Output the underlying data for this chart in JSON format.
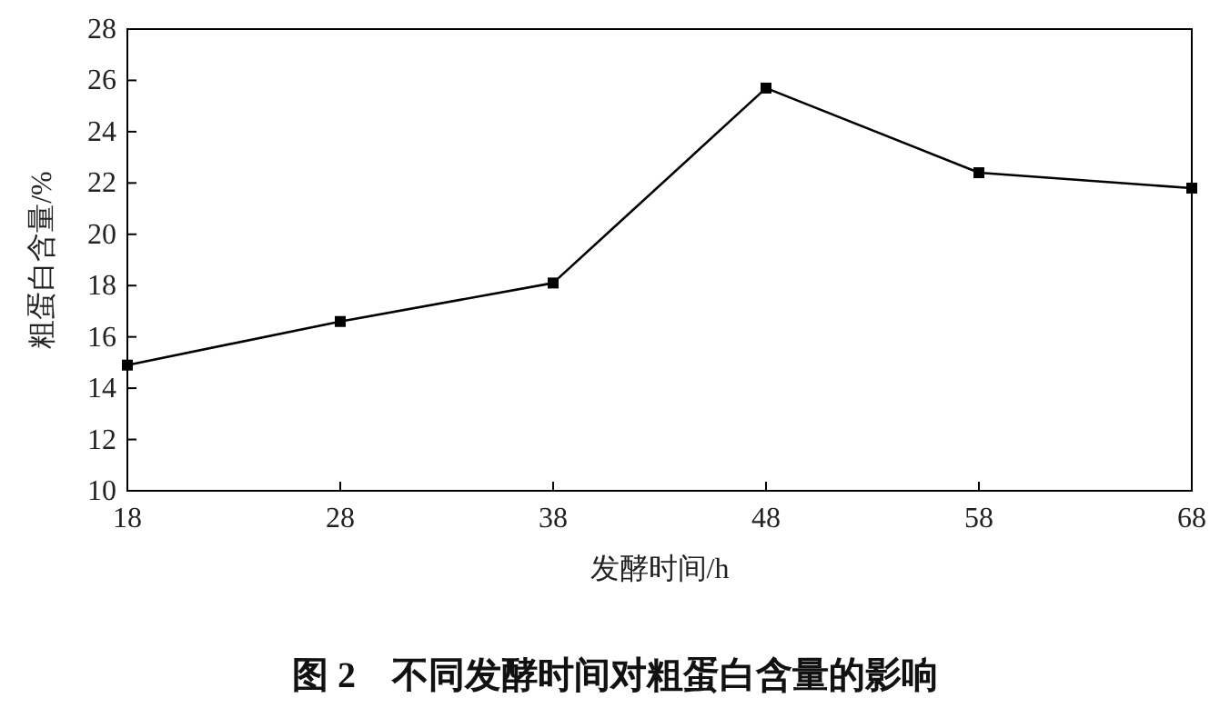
{
  "chart_data": {
    "type": "line",
    "title": "图 2　不同发酵时间对粗蛋白含量的影响",
    "xlabel": "发酵时间/h",
    "ylabel": "粗蛋白含量/%",
    "x": [
      18,
      28,
      38,
      48,
      58,
      68
    ],
    "series": [
      {
        "color": "#000000",
        "values": [
          14.9,
          16.6,
          18.1,
          25.7,
          22.4,
          21.8
        ]
      }
    ],
    "xlim": [
      18,
      68
    ],
    "xticks": [
      18,
      28,
      38,
      48,
      58,
      68
    ],
    "ylim": [
      10,
      28
    ],
    "yticks": [
      10,
      12,
      14,
      16,
      18,
      20,
      22,
      24,
      26,
      28
    ],
    "marker": "square",
    "line_style": "solid",
    "grid": false
  }
}
